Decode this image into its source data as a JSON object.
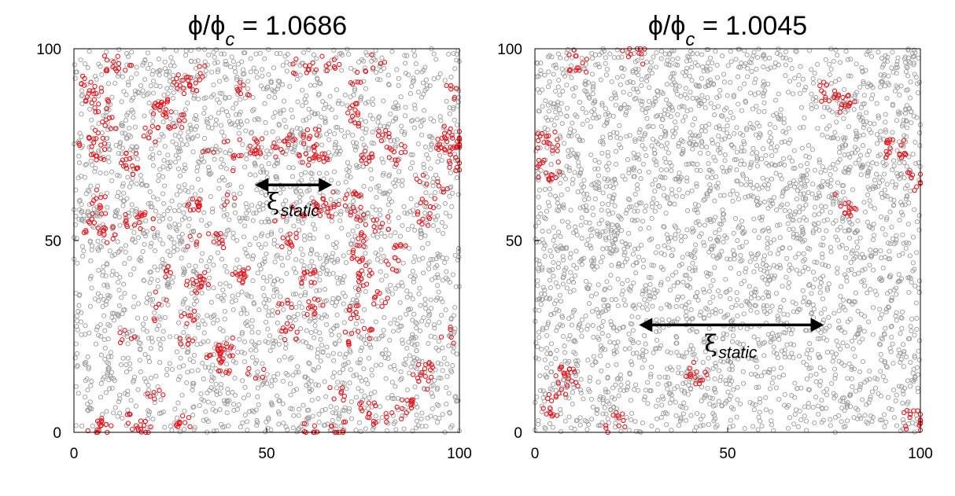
{
  "chart_data": [
    {
      "type": "scatter",
      "title_prefix": "ϕ/ϕ",
      "title_sub": "c",
      "title_value": " = 1.0686",
      "xlim": [
        0,
        100
      ],
      "ylim": [
        0,
        100
      ],
      "xticks": [
        0,
        50,
        100
      ],
      "yticks": [
        0,
        50,
        100
      ],
      "grid": false,
      "annotation": {
        "symbol": "ξ",
        "subscript": "static",
        "arrow_from": [
          47,
          64.5
        ],
        "arrow_to": [
          67,
          64.5
        ],
        "label_at": [
          52,
          58
        ]
      },
      "series": [
        {
          "color": "#9a9a9a",
          "count": 2600,
          "marker": "open-circle"
        },
        {
          "color": "#e8141c",
          "count": 850,
          "marker": "open-circle"
        }
      ]
    },
    {
      "type": "scatter",
      "title_prefix": "ϕ/ϕ",
      "title_sub": "c",
      "title_value": " = 1.0045",
      "xlim": [
        0,
        100
      ],
      "ylim": [
        0,
        100
      ],
      "xticks": [
        0,
        50,
        100
      ],
      "yticks": [
        0,
        50,
        100
      ],
      "grid": false,
      "annotation": {
        "symbol": "ξ",
        "subscript": "static",
        "arrow_from": [
          27,
          28
        ],
        "arrow_to": [
          75,
          28
        ],
        "label_at": [
          46,
          21
        ]
      },
      "series": [
        {
          "color": "#9a9a9a",
          "count": 3100,
          "marker": "open-circle"
        },
        {
          "color": "#e8141c",
          "count": 200,
          "marker": "open-circle"
        }
      ]
    }
  ]
}
